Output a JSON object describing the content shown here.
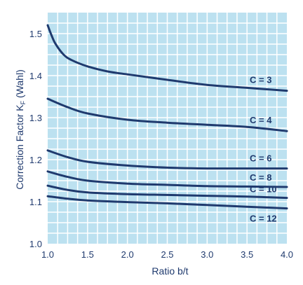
{
  "colors": {
    "plot_background": "#bce1f0",
    "grid": "#ffffff",
    "curve": "#1f3a6e",
    "text": "#1f3a6e"
  },
  "chart_data": {
    "type": "line",
    "title": "",
    "xlabel": "Ratio b/t",
    "ylabel": "Correction Factor K",
    "ylabel_subscript": "F",
    "ylabel_suffix": "(Wahl)",
    "xlim": [
      1.0,
      4.0
    ],
    "ylim": [
      1.0,
      1.55
    ],
    "x_ticks": [
      "1.0",
      "1.5",
      "2.0",
      "2.5",
      "3.0",
      "3.5",
      "4.0"
    ],
    "y_ticks": [
      "1.0",
      "1.1",
      "1.2",
      "1.3",
      "1.4",
      "1.5"
    ],
    "grid": true,
    "series": [
      {
        "name": "C = 3",
        "x": [
          1.0,
          1.05,
          1.1,
          1.2,
          1.3,
          1.5,
          1.75,
          2.0,
          2.5,
          3.0,
          3.5,
          4.0
        ],
        "y": [
          1.52,
          1.495,
          1.475,
          1.45,
          1.437,
          1.422,
          1.41,
          1.403,
          1.39,
          1.378,
          1.371,
          1.364
        ]
      },
      {
        "name": "C = 4",
        "x": [
          1.0,
          1.25,
          1.5,
          2.0,
          2.5,
          3.0,
          3.5,
          4.0
        ],
        "y": [
          1.345,
          1.325,
          1.31,
          1.295,
          1.288,
          1.283,
          1.278,
          1.268
        ]
      },
      {
        "name": "C = 6",
        "x": [
          1.0,
          1.25,
          1.5,
          2.0,
          2.5,
          3.0,
          3.5,
          4.0
        ],
        "y": [
          1.222,
          1.206,
          1.195,
          1.186,
          1.181,
          1.179,
          1.179,
          1.179
        ]
      },
      {
        "name": "C = 8",
        "x": [
          1.0,
          1.25,
          1.5,
          2.0,
          2.5,
          3.0,
          3.5,
          4.0
        ],
        "y": [
          1.172,
          1.159,
          1.15,
          1.143,
          1.14,
          1.137,
          1.136,
          1.135
        ]
      },
      {
        "name": "C = 10",
        "x": [
          1.0,
          1.25,
          1.5,
          2.0,
          2.5,
          3.0,
          3.5,
          4.0
        ],
        "y": [
          1.138,
          1.128,
          1.122,
          1.118,
          1.116,
          1.114,
          1.112,
          1.109
        ]
      },
      {
        "name": "C = 12",
        "x": [
          1.0,
          1.25,
          1.5,
          2.0,
          2.5,
          3.0,
          3.5,
          4.0
        ],
        "y": [
          1.113,
          1.107,
          1.103,
          1.099,
          1.096,
          1.092,
          1.088,
          1.084
        ]
      }
    ]
  }
}
